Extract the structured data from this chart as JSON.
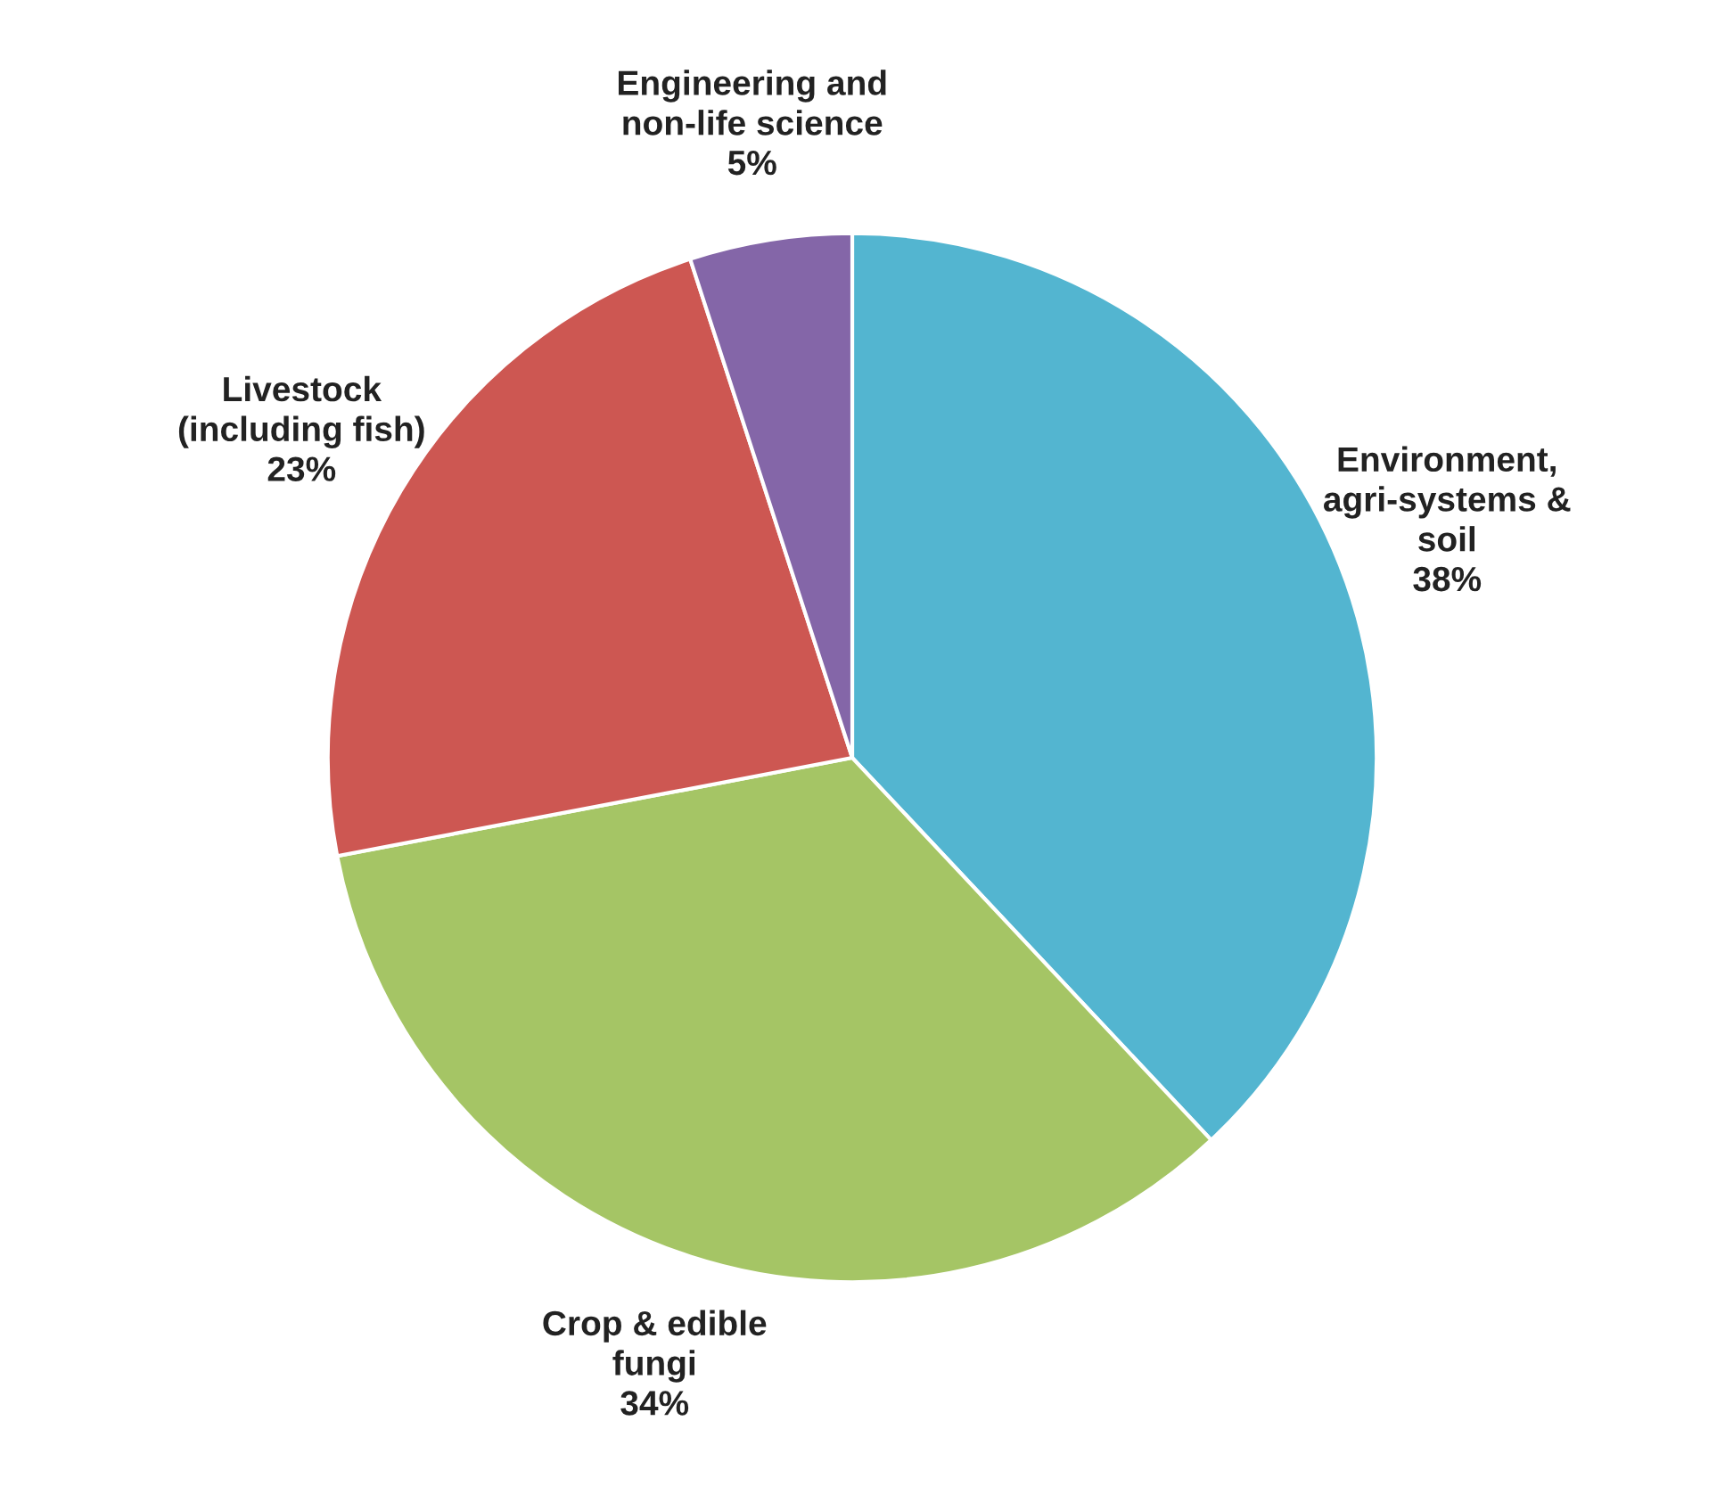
{
  "chart_data": {
    "type": "pie",
    "categories": [
      "Environment,\nagri-systems &\nsoil",
      "Crop & edible\nfungi",
      "Livestock\n(including fish)",
      "Engineering and\nnon-life science"
    ],
    "values": [
      38,
      34,
      23,
      5
    ],
    "colors": [
      "#53b5d0",
      "#a5c565",
      "#cd5752",
      "#8466a8"
    ],
    "value_labels": [
      "38%",
      "34%",
      "23%",
      "5%"
    ],
    "legend": false
  }
}
